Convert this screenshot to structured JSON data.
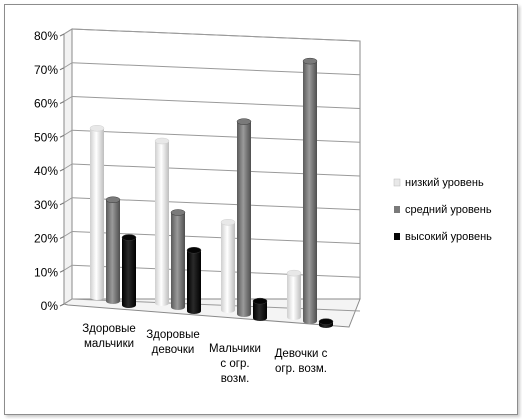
{
  "chart_data": {
    "type": "bar",
    "categories": [
      [
        "Здоровые",
        "мальчики"
      ],
      [
        "Здоровые",
        "девочки"
      ],
      [
        "Мальчики",
        "с огр.",
        "возм."
      ],
      [
        "Девочки с",
        "огр. возм."
      ]
    ],
    "series": [
      {
        "name": "низкий уровень",
        "color": "#e8e8e8",
        "values": [
          50,
          48,
          26,
          13
        ]
      },
      {
        "name": "средний уровень",
        "color": "#7a7a7a",
        "values": [
          30,
          28,
          57,
          77
        ]
      },
      {
        "name": "высокий уровень",
        "color": "#050505",
        "values": [
          20,
          18,
          5,
          1
        ]
      }
    ],
    "yticks": [
      "0%",
      "10%",
      "20%",
      "30%",
      "40%",
      "50%",
      "60%",
      "70%",
      "80%"
    ],
    "ylim": [
      0,
      80
    ],
    "grid": true,
    "legend_position": "right",
    "title": "",
    "xlabel": "",
    "ylabel": ""
  }
}
